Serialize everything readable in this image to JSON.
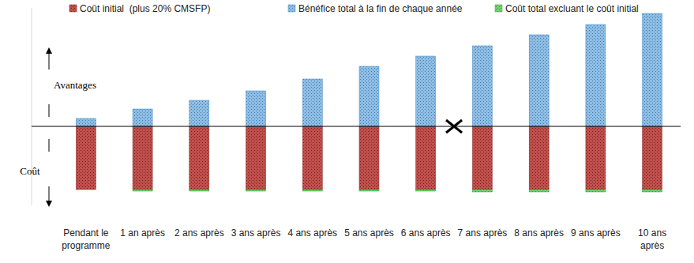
{
  "chart_data": {
    "type": "bar",
    "stacked": true,
    "tick_labels": false,
    "grid": true,
    "annotations": [
      "Avantages",
      "Coût"
    ],
    "categories": [
      "Pendant le programme",
      "1 an après",
      "2 ans après",
      "3 ans après",
      "4 ans après",
      "5 ans après",
      "6 ans après",
      "7 ans après",
      "8 ans après",
      "9 ans après",
      "10 ans après"
    ],
    "series": [
      {
        "name": "Coût initial  (plus 20% CMSFP)",
        "color": "#c0504d",
        "values": [
          -80,
          -80,
          -80,
          -80,
          -80,
          -80,
          -80,
          -80,
          -80,
          -80,
          -80
        ]
      },
      {
        "name": "Bénéfice total à la fin de chaque année",
        "color": "#8fbde3",
        "values": [
          10,
          22,
          33,
          45,
          60,
          76,
          89,
          102,
          116,
          129,
          143
        ]
      },
      {
        "name": "Coût total excluant le coût initial",
        "color": "#6fd36f",
        "values": [
          0,
          -2,
          -2,
          -2,
          -2,
          -2,
          -2,
          -3,
          -3,
          -3,
          -3
        ]
      }
    ],
    "ylim": [
      -100,
      150
    ],
    "yticks": [
      0
    ]
  }
}
